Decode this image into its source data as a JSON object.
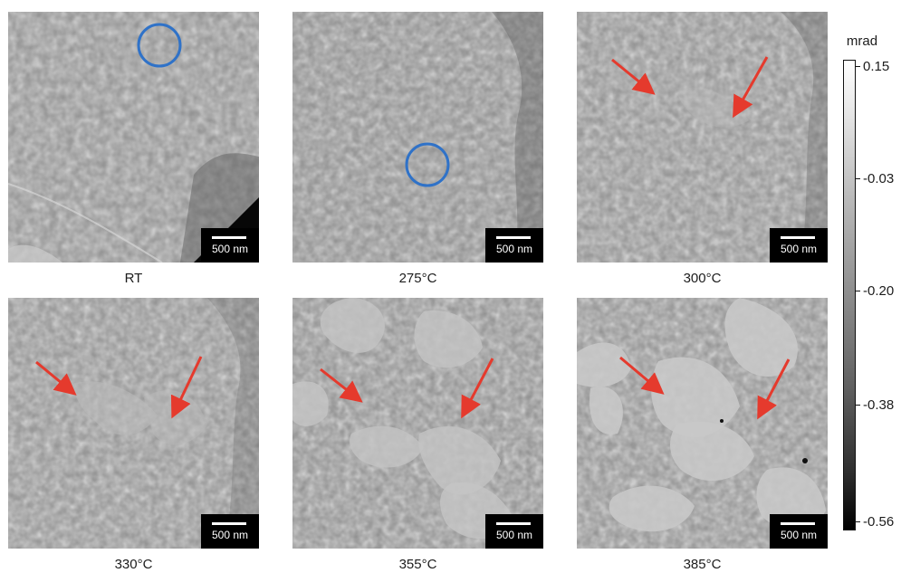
{
  "panels": [
    {
      "label": "RT",
      "scale_bar": "500 nm"
    },
    {
      "label": "275°C",
      "scale_bar": "500 nm"
    },
    {
      "label": "300°C",
      "scale_bar": "500 nm"
    },
    {
      "label": "330°C",
      "scale_bar": "500 nm"
    },
    {
      "label": "355°C",
      "scale_bar": "500 nm"
    },
    {
      "label": "385°C",
      "scale_bar": "500 nm"
    }
  ],
  "colorbar": {
    "unit": "mrad",
    "ticks": [
      "0.15",
      "-0.03",
      "-0.20",
      "-0.38",
      "-0.56"
    ]
  },
  "colors": {
    "arrow": "#e53a2d",
    "circle": "#2f72c8"
  }
}
